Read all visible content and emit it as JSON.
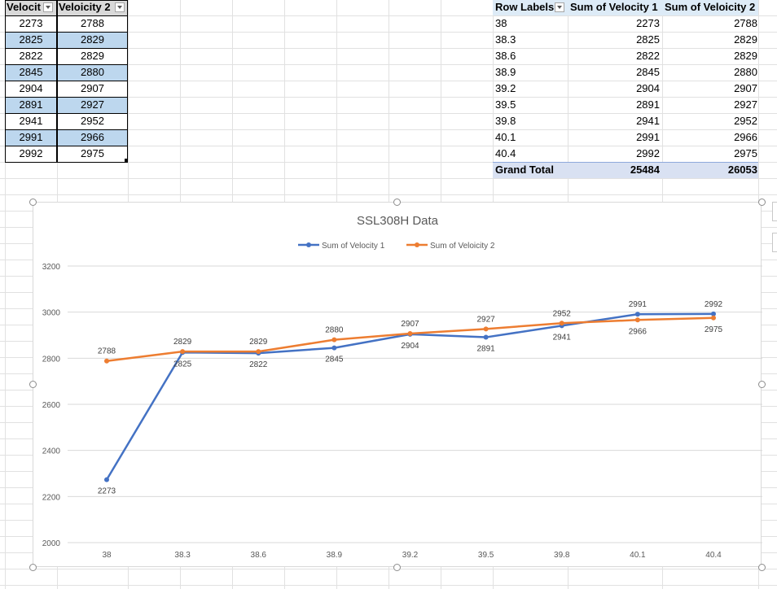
{
  "left_table": {
    "headers": [
      "Velocit",
      "Veloicity 2"
    ],
    "rows": [
      [
        "2273",
        "2788"
      ],
      [
        "2825",
        "2829"
      ],
      [
        "2822",
        "2829"
      ],
      [
        "2845",
        "2880"
      ],
      [
        "2904",
        "2907"
      ],
      [
        "2891",
        "2927"
      ],
      [
        "2941",
        "2952"
      ],
      [
        "2991",
        "2966"
      ],
      [
        "2992",
        "2975"
      ]
    ],
    "band_color": "#bdd7ee"
  },
  "pivot": {
    "headers": [
      "Row Labels",
      "Sum of Velocity 1",
      "Sum of Veloicity 2"
    ],
    "rows": [
      [
        "38",
        "2273",
        "2788"
      ],
      [
        "38.3",
        "2825",
        "2829"
      ],
      [
        "38.6",
        "2822",
        "2829"
      ],
      [
        "38.9",
        "2845",
        "2880"
      ],
      [
        "39.2",
        "2904",
        "2907"
      ],
      [
        "39.5",
        "2891",
        "2927"
      ],
      [
        "39.8",
        "2941",
        "2952"
      ],
      [
        "40.1",
        "2991",
        "2966"
      ],
      [
        "40.4",
        "2992",
        "2975"
      ]
    ],
    "total": [
      "Grand Total",
      "25484",
      "26053"
    ],
    "header_color": "#ddebf7",
    "total_color": "#d9e1f2"
  },
  "chart_data": {
    "type": "line",
    "title": "SSL308H Data",
    "categories": [
      "38",
      "38.3",
      "38.6",
      "38.9",
      "39.2",
      "39.5",
      "39.8",
      "40.1",
      "40.4"
    ],
    "series": [
      {
        "name": "Sum of Velocity 1",
        "values": [
          2273,
          2825,
          2822,
          2845,
          2904,
          2891,
          2941,
          2991,
          2992
        ],
        "color": "#4472c4"
      },
      {
        "name": "Sum of Veloicity 2",
        "values": [
          2788,
          2829,
          2829,
          2880,
          2907,
          2927,
          2952,
          2966,
          2975
        ],
        "color": "#ed7d31"
      }
    ],
    "ylim": [
      2000,
      3200
    ],
    "yticks": [
      2000,
      2200,
      2400,
      2600,
      2800,
      3000,
      3200
    ],
    "grid": true,
    "legend": "top"
  }
}
